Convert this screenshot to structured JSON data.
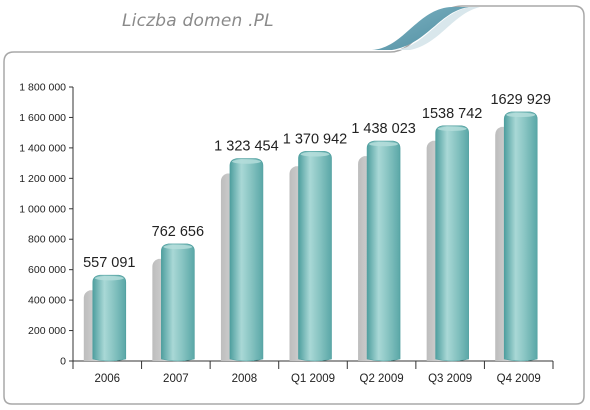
{
  "chart_data": {
    "type": "bar",
    "title": "Liczba domen .PL",
    "categories": [
      "2006",
      "2007",
      "2008",
      "Q1 2009",
      "Q2 2009",
      "Q3 2009",
      "Q4 2009"
    ],
    "values": [
      557091,
      762656,
      1323454,
      1370942,
      1438023,
      1538742,
      1629929
    ],
    "data_labels": [
      "557 091",
      "762 656",
      "1 323 454",
      "1 370 942",
      "1 438 023",
      "1538 742",
      "1629 929"
    ],
    "y_ticks": [
      0,
      200000,
      400000,
      600000,
      800000,
      1000000,
      1200000,
      1400000,
      1600000,
      1800000
    ],
    "y_tick_labels": [
      "0",
      "200 000",
      "400 000",
      "600 000",
      "800 000",
      "1 000 000",
      "1 200 000",
      "1 400 000",
      "1 600 000",
      "1 800 000"
    ],
    "ylim": [
      0,
      1800000
    ],
    "grid": false,
    "legend": "none",
    "xlabel": "",
    "ylabel": "",
    "colors": {
      "bar": "#7cbcbc",
      "bar_dark": "#4e9e9e",
      "bar_light": "#b4dddb",
      "shadow": "#c8c8c8",
      "swoosh": "#5e9cae",
      "border": "#a8a8a8",
      "axis": "#333333",
      "text": "#222222"
    }
  }
}
